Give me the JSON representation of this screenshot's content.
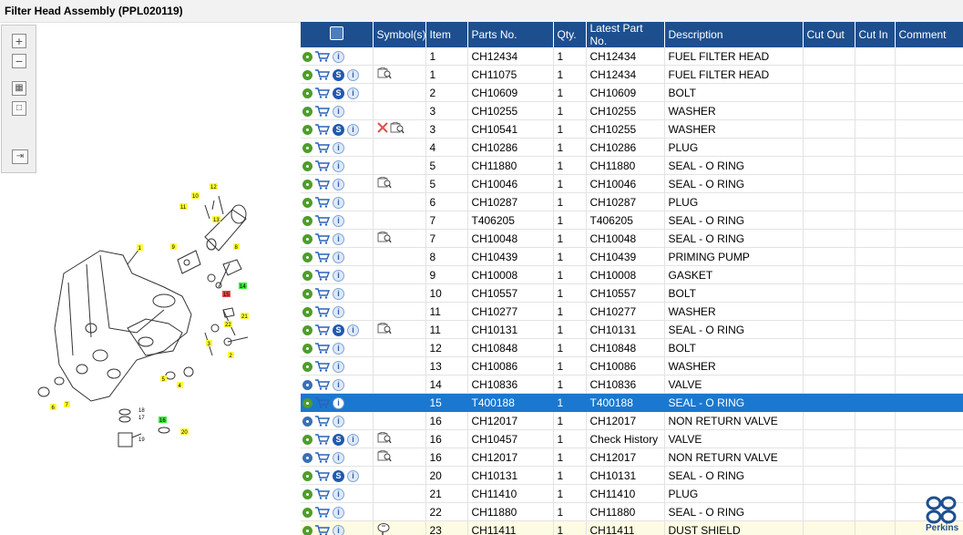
{
  "title": "Filter Head Assembly (PPL020119)",
  "toolbar": {
    "buttons": [
      "zoom-in",
      "zoom-out",
      "fit-all",
      "fit-window",
      "move-right"
    ]
  },
  "diagram": {
    "callouts": [
      "1",
      "2",
      "3",
      "4",
      "5",
      "6",
      "7",
      "8",
      "9",
      "10",
      "11",
      "12",
      "13",
      "14",
      "15",
      "16",
      "17",
      "18",
      "19",
      "20",
      "21",
      "22",
      "23"
    ]
  },
  "table": {
    "headers": {
      "symbols": "Symbol(s)",
      "item": "Item",
      "parts_no": "Parts No.",
      "qty": "Qty.",
      "latest_part_no": "Latest Part No.",
      "description": "Description",
      "cut_out": "Cut Out",
      "cut_in": "Cut In",
      "comment": "Comment"
    },
    "rows": [
      {
        "item": "1",
        "parts_no": "CH12434",
        "qty": "1",
        "latest": "CH12434",
        "desc": "FUEL FILTER HEAD"
      },
      {
        "item": "1",
        "parts_no": "CH11075",
        "qty": "1",
        "latest": "CH12434",
        "desc": "FUEL FILTER HEAD"
      },
      {
        "item": "2",
        "parts_no": "CH10609",
        "qty": "1",
        "latest": "CH10609",
        "desc": "BOLT"
      },
      {
        "item": "3",
        "parts_no": "CH10255",
        "qty": "1",
        "latest": "CH10255",
        "desc": "WASHER"
      },
      {
        "item": "3",
        "parts_no": "CH10541",
        "qty": "1",
        "latest": "CH10255",
        "desc": "WASHER"
      },
      {
        "item": "4",
        "parts_no": "CH10286",
        "qty": "1",
        "latest": "CH10286",
        "desc": "PLUG"
      },
      {
        "item": "5",
        "parts_no": "CH11880",
        "qty": "1",
        "latest": "CH11880",
        "desc": "SEAL - O RING"
      },
      {
        "item": "5",
        "parts_no": "CH10046",
        "qty": "1",
        "latest": "CH10046",
        "desc": "SEAL - O RING"
      },
      {
        "item": "6",
        "parts_no": "CH10287",
        "qty": "1",
        "latest": "CH10287",
        "desc": "PLUG"
      },
      {
        "item": "7",
        "parts_no": "T406205",
        "qty": "1",
        "latest": "T406205",
        "desc": "SEAL - O RING"
      },
      {
        "item": "7",
        "parts_no": "CH10048",
        "qty": "1",
        "latest": "CH10048",
        "desc": "SEAL - O RING"
      },
      {
        "item": "8",
        "parts_no": "CH10439",
        "qty": "1",
        "latest": "CH10439",
        "desc": "PRIMING PUMP"
      },
      {
        "item": "9",
        "parts_no": "CH10008",
        "qty": "1",
        "latest": "CH10008",
        "desc": "GASKET"
      },
      {
        "item": "10",
        "parts_no": "CH10557",
        "qty": "1",
        "latest": "CH10557",
        "desc": "BOLT"
      },
      {
        "item": "11",
        "parts_no": "CH10277",
        "qty": "1",
        "latest": "CH10277",
        "desc": "WASHER"
      },
      {
        "item": "11",
        "parts_no": "CH10131",
        "qty": "1",
        "latest": "CH10131",
        "desc": "SEAL - O RING"
      },
      {
        "item": "12",
        "parts_no": "CH10848",
        "qty": "1",
        "latest": "CH10848",
        "desc": "BOLT"
      },
      {
        "item": "13",
        "parts_no": "CH10086",
        "qty": "1",
        "latest": "CH10086",
        "desc": "WASHER"
      },
      {
        "item": "14",
        "parts_no": "CH10836",
        "qty": "1",
        "latest": "CH10836",
        "desc": "VALVE"
      },
      {
        "item": "15",
        "parts_no": "T400188",
        "qty": "1",
        "latest": "T400188",
        "desc": "SEAL - O RING"
      },
      {
        "item": "16",
        "parts_no": "CH12017",
        "qty": "1",
        "latest": "CH12017",
        "desc": "NON RETURN VALVE"
      },
      {
        "item": "16",
        "parts_no": "CH10457",
        "qty": "1",
        "latest": "Check History",
        "desc": "VALVE"
      },
      {
        "item": "16",
        "parts_no": "CH12017",
        "qty": "1",
        "latest": "CH12017",
        "desc": "NON RETURN VALVE"
      },
      {
        "item": "20",
        "parts_no": "CH10131",
        "qty": "1",
        "latest": "CH10131",
        "desc": "SEAL - O RING"
      },
      {
        "item": "21",
        "parts_no": "CH11410",
        "qty": "1",
        "latest": "CH11410",
        "desc": "PLUG"
      },
      {
        "item": "22",
        "parts_no": "CH11880",
        "qty": "1",
        "latest": "CH11880",
        "desc": "SEAL - O RING"
      },
      {
        "item": "23",
        "parts_no": "CH11411",
        "qty": "1",
        "latest": "CH11411",
        "desc": "DUST SHIELD"
      }
    ]
  },
  "logo_text": "Perkins"
}
